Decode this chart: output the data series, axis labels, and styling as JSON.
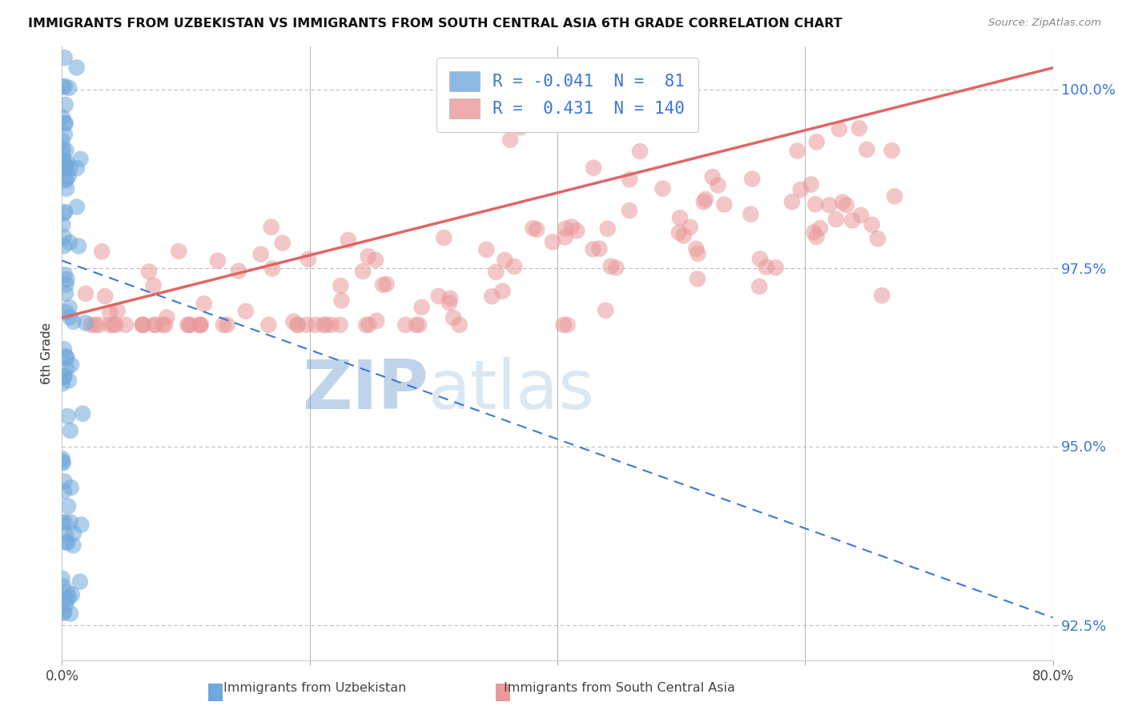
{
  "title": "IMMIGRANTS FROM UZBEKISTAN VS IMMIGRANTS FROM SOUTH CENTRAL ASIA 6TH GRADE CORRELATION CHART",
  "source": "Source: ZipAtlas.com",
  "ylabel_label": "6th Grade",
  "legend_label1": "Immigrants from Uzbekistan",
  "legend_label2": "Immigrants from South Central Asia",
  "r1": -0.041,
  "n1": 81,
  "r2": 0.431,
  "n2": 140,
  "color_blue": "#6fa8dc",
  "color_pink": "#ea9999",
  "color_blue_dark": "#3c78d8",
  "color_pink_dark": "#e06666",
  "color_grid": "#bbbbbb",
  "watermark_zip": "#4a86c8",
  "watermark_atlas": "#aac4e8",
  "xmin": 0.0,
  "xmax": 80.0,
  "ymin": 92.0,
  "ymax": 100.6,
  "yticks": [
    92.5,
    95.0,
    97.5,
    100.0
  ],
  "blue_line_x0": 0.0,
  "blue_line_y0": 97.6,
  "blue_line_x1": 80.0,
  "blue_line_y1": 92.6,
  "pink_line_x0": 0.0,
  "pink_line_y0": 96.8,
  "pink_line_x1": 80.0,
  "pink_line_y1": 100.3
}
